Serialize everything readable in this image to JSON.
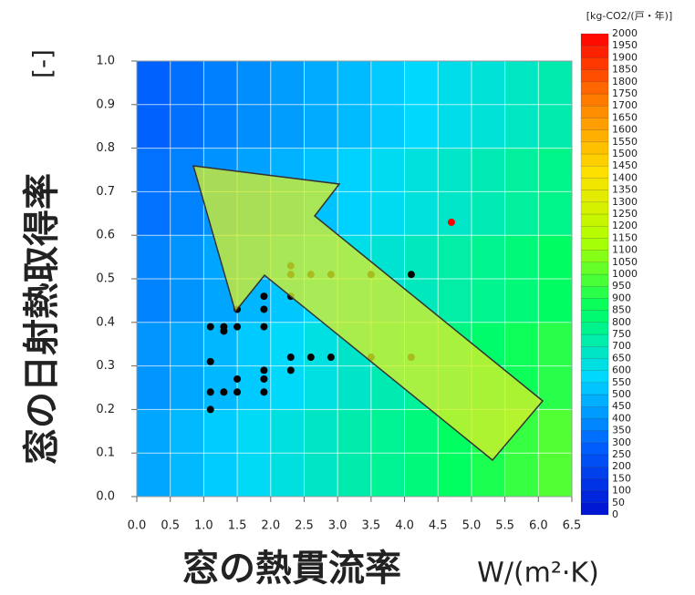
{
  "chart_data": {
    "type": "heatmap-scatter",
    "xlabel": "窓の熱貫流率",
    "xunit": "W/(m²·K)",
    "ylabel": "窓の日射熱取得率",
    "yunit": "[-]",
    "colorbar_title": "[kg-CO2/(戸・年)]",
    "xlim": [
      0,
      6.5
    ],
    "ylim": [
      0,
      1
    ],
    "xticks": [
      {
        "value": 0,
        "label": "0.0"
      },
      {
        "value": 0.5,
        "label": "0.5"
      },
      {
        "value": 1,
        "label": "1.0"
      },
      {
        "value": 1.5,
        "label": "1.5"
      },
      {
        "value": 2,
        "label": "2.0"
      },
      {
        "value": 2.5,
        "label": "2.5"
      },
      {
        "value": 3,
        "label": "3.0"
      },
      {
        "value": 3.5,
        "label": "3.5"
      },
      {
        "value": 4,
        "label": "4.0"
      },
      {
        "value": 4.5,
        "label": "4.5"
      },
      {
        "value": 5,
        "label": "5.0"
      },
      {
        "value": 5.5,
        "label": "5.5"
      },
      {
        "value": 6,
        "label": "6.0"
      },
      {
        "value": 6.5,
        "label": "6.5"
      }
    ],
    "yticks": [
      {
        "value": 0,
        "label": "0.0"
      },
      {
        "value": 0.1,
        "label": "0.1"
      },
      {
        "value": 0.2,
        "label": "0.2"
      },
      {
        "value": 0.3,
        "label": "0.3"
      },
      {
        "value": 0.4,
        "label": "0.4"
      },
      {
        "value": 0.5,
        "label": "0.5"
      },
      {
        "value": 0.6,
        "label": "0.6"
      },
      {
        "value": 0.7,
        "label": "0.7"
      },
      {
        "value": 0.8,
        "label": "0.8"
      },
      {
        "value": 0.9,
        "label": "0.9"
      },
      {
        "value": 1,
        "label": "1.0"
      }
    ],
    "grid": true,
    "field": {
      "x": [
        0.25,
        0.75,
        1.25,
        1.75,
        2.25,
        2.75,
        3.25,
        3.75,
        4.25,
        4.75,
        5.25,
        5.75,
        6.25
      ],
      "y": [
        0.9,
        0.7,
        0.5,
        0.3,
        0.1
      ],
      "z": [
        [
          288,
          323,
          359,
          395,
          430,
          466,
          502,
          537,
          573,
          609,
          644,
          680,
          716
        ],
        [
          329,
          367,
          405,
          443,
          481,
          519,
          557,
          595,
          633,
          671,
          708,
          746,
          784
        ],
        [
          370,
          410,
          451,
          491,
          531,
          571,
          612,
          652,
          692,
          732,
          773,
          813,
          853
        ],
        [
          411,
          454,
          496,
          539,
          581,
          624,
          667,
          709,
          752,
          794,
          837,
          879,
          922
        ],
        [
          452,
          497,
          542,
          587,
          631,
          676,
          721,
          766,
          811,
          856,
          901,
          946,
          991
        ]
      ]
    },
    "zlim": [
      0,
      2000
    ],
    "colormap": [
      "#0010d0",
      "#0060ff",
      "#00d8ff",
      "#00ff60",
      "#b0ff00",
      "#ffe000",
      "#ff8000",
      "#ff0000"
    ],
    "colorbar_ticks": [
      0,
      50,
      100,
      150,
      200,
      250,
      300,
      350,
      400,
      450,
      500,
      550,
      600,
      650,
      700,
      750,
      800,
      850,
      900,
      950,
      1000,
      1050,
      1100,
      1150,
      1200,
      1250,
      1300,
      1350,
      1400,
      1450,
      1500,
      1550,
      1600,
      1650,
      1700,
      1750,
      1800,
      1850,
      1900,
      1950,
      2000
    ],
    "series": [
      {
        "color": "#000000",
        "x": [
          1.1,
          1.1,
          1.1,
          1.1,
          1.3,
          1.3,
          1.3,
          1.5,
          1.5,
          1.5,
          1.5,
          1.9,
          1.9,
          1.9,
          1.9,
          1.9,
          1.9,
          2.3,
          2.3,
          2.3,
          2.6,
          2.9,
          4.1,
          2.3,
          2.3,
          2.6,
          2.9,
          3.5,
          3.5,
          4.1
        ],
        "y": [
          0.39,
          0.31,
          0.24,
          0.2,
          0.39,
          0.38,
          0.24,
          0.43,
          0.39,
          0.27,
          0.24,
          0.46,
          0.43,
          0.39,
          0.29,
          0.27,
          0.24,
          0.46,
          0.32,
          0.29,
          0.32,
          0.32,
          0.51,
          0.53,
          0.51,
          0.51,
          0.51,
          0.51,
          0.32,
          0.32
        ]
      },
      {
        "color": "#ff0000",
        "x": [
          4.7
        ],
        "y": [
          0.63
        ]
      }
    ]
  }
}
